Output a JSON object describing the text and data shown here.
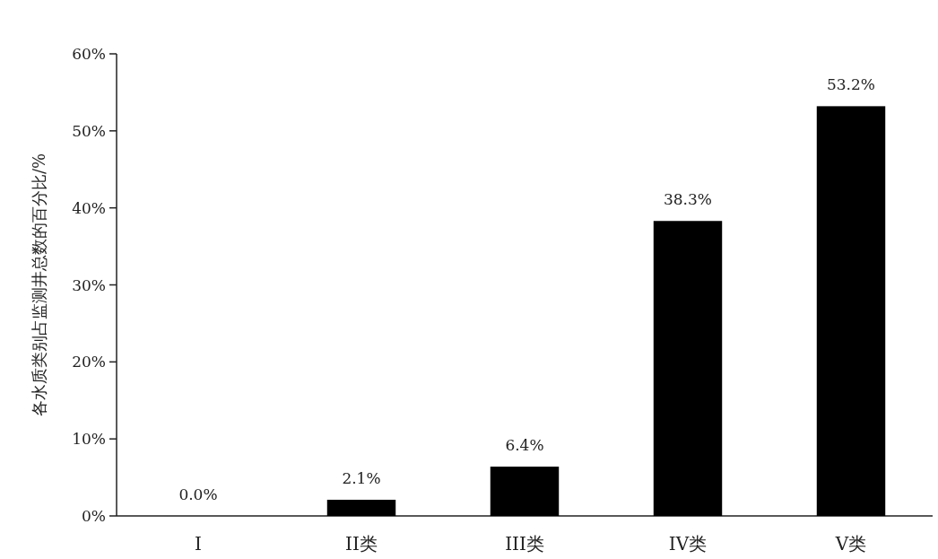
{
  "chart_data": {
    "type": "bar",
    "ylabel": "各水质类别占监测井总数的百分比/%",
    "categories": [
      "I",
      "II类",
      "III类",
      "IV类",
      "V类"
    ],
    "values": [
      0.0,
      2.1,
      6.4,
      38.3,
      53.2
    ],
    "color": "#000000",
    "value_labels": [
      "0.0%",
      "2.1%",
      "6.4%",
      "38.3%",
      "53.2%"
    ],
    "ylim": [
      0,
      60
    ],
    "yticks": [
      {
        "value": 0,
        "label": "0%"
      },
      {
        "value": 10,
        "label": "10%"
      },
      {
        "value": 20,
        "label": "20%"
      },
      {
        "value": 30,
        "label": "30%"
      },
      {
        "value": 40,
        "label": "40%"
      },
      {
        "value": 50,
        "label": "50%"
      },
      {
        "value": 60,
        "label": "60%"
      }
    ]
  }
}
